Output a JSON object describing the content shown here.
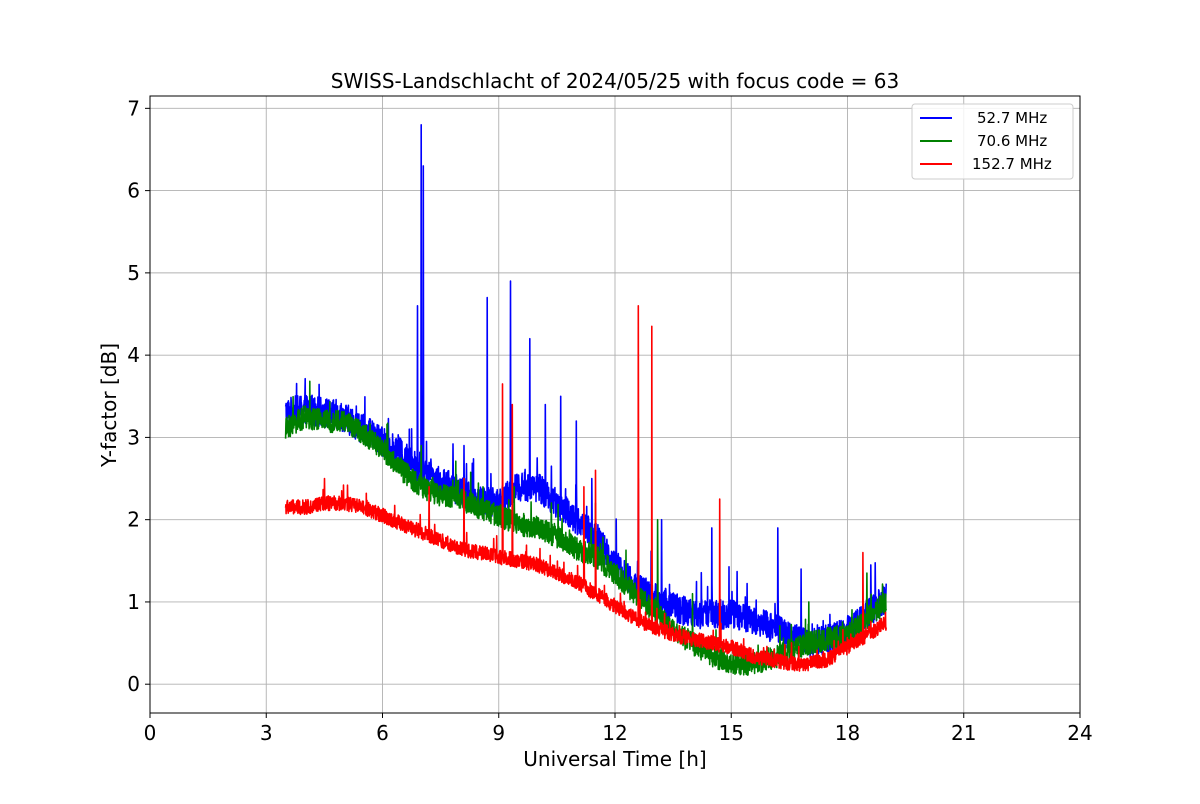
{
  "chart_data": {
    "type": "line",
    "title": "SWISS-Landschlacht of 2024/05/25 with focus code = 63",
    "xlabel": "Universal Time [h]",
    "ylabel": "Y-factor [dB]",
    "xlim": [
      0,
      24
    ],
    "ylim": [
      -0.35,
      7.15
    ],
    "xticks": [
      0,
      3,
      6,
      9,
      12,
      15,
      18,
      21,
      24
    ],
    "yticks": [
      0,
      1,
      2,
      3,
      4,
      5,
      6,
      7
    ],
    "grid": true,
    "legend_position": "top-right",
    "series": [
      {
        "name": "52.7 MHz",
        "color": "#0000ff",
        "noise": 0.18,
        "baseline": [
          [
            3.5,
            3.3
          ],
          [
            4.0,
            3.35
          ],
          [
            4.5,
            3.3
          ],
          [
            5.0,
            3.25
          ],
          [
            5.5,
            3.1
          ],
          [
            6.0,
            2.95
          ],
          [
            6.5,
            2.8
          ],
          [
            7.0,
            2.6
          ],
          [
            7.5,
            2.45
          ],
          [
            8.0,
            2.35
          ],
          [
            8.5,
            2.25
          ],
          [
            9.0,
            2.2
          ],
          [
            9.5,
            2.4
          ],
          [
            10.0,
            2.4
          ],
          [
            10.5,
            2.2
          ],
          [
            11.0,
            2.0
          ],
          [
            11.5,
            1.8
          ],
          [
            12.0,
            1.45
          ],
          [
            12.5,
            1.2
          ],
          [
            13.0,
            1.05
          ],
          [
            13.5,
            0.95
          ],
          [
            14.0,
            0.85
          ],
          [
            14.5,
            0.85
          ],
          [
            15.0,
            0.85
          ],
          [
            15.5,
            0.8
          ],
          [
            16.0,
            0.7
          ],
          [
            16.5,
            0.6
          ],
          [
            17.0,
            0.5
          ],
          [
            17.5,
            0.55
          ],
          [
            18.0,
            0.65
          ],
          [
            18.5,
            0.85
          ],
          [
            19.0,
            1.05
          ]
        ],
        "spikes": [
          [
            6.9,
            4.6
          ],
          [
            7.0,
            6.8
          ],
          [
            7.05,
            6.3
          ],
          [
            8.1,
            2.9
          ],
          [
            8.7,
            4.7
          ],
          [
            9.3,
            4.9
          ],
          [
            9.8,
            4.2
          ],
          [
            10.2,
            3.4
          ],
          [
            10.6,
            3.5
          ],
          [
            11.0,
            3.2
          ],
          [
            11.4,
            2.5
          ],
          [
            12.6,
            2.5
          ],
          [
            13.2,
            2.0
          ],
          [
            14.5,
            1.9
          ],
          [
            16.2,
            1.9
          ],
          [
            16.8,
            1.4
          ],
          [
            18.6,
            1.45
          ]
        ]
      },
      {
        "name": "70.6 MHz",
        "color": "#008000",
        "noise": 0.14,
        "baseline": [
          [
            3.5,
            3.1
          ],
          [
            4.0,
            3.25
          ],
          [
            4.5,
            3.2
          ],
          [
            5.0,
            3.2
          ],
          [
            5.5,
            3.05
          ],
          [
            6.0,
            2.85
          ],
          [
            6.5,
            2.6
          ],
          [
            7.0,
            2.4
          ],
          [
            7.5,
            2.3
          ],
          [
            8.0,
            2.25
          ],
          [
            8.5,
            2.15
          ],
          [
            9.0,
            2.05
          ],
          [
            9.5,
            1.95
          ],
          [
            10.0,
            1.9
          ],
          [
            10.5,
            1.8
          ],
          [
            11.0,
            1.65
          ],
          [
            11.5,
            1.55
          ],
          [
            12.0,
            1.35
          ],
          [
            12.5,
            1.1
          ],
          [
            13.0,
            0.9
          ],
          [
            13.5,
            0.65
          ],
          [
            14.0,
            0.5
          ],
          [
            14.5,
            0.35
          ],
          [
            15.0,
            0.25
          ],
          [
            15.5,
            0.25
          ],
          [
            16.0,
            0.3
          ],
          [
            16.5,
            0.4
          ],
          [
            17.0,
            0.5
          ],
          [
            17.5,
            0.55
          ],
          [
            18.0,
            0.6
          ],
          [
            18.5,
            0.8
          ],
          [
            19.0,
            1.0
          ]
        ],
        "spikes": [
          [
            7.0,
            2.9
          ],
          [
            9.4,
            2.4
          ],
          [
            11.5,
            2.2
          ],
          [
            13.1,
            2.0
          ],
          [
            14.0,
            1.1
          ],
          [
            17.0,
            1.0
          ],
          [
            18.5,
            1.35
          ]
        ]
      },
      {
        "name": "152.7 MHz",
        "color": "#ff0000",
        "noise": 0.09,
        "baseline": [
          [
            3.5,
            2.15
          ],
          [
            4.0,
            2.15
          ],
          [
            4.5,
            2.2
          ],
          [
            5.0,
            2.2
          ],
          [
            5.5,
            2.15
          ],
          [
            6.0,
            2.05
          ],
          [
            6.5,
            1.95
          ],
          [
            7.0,
            1.85
          ],
          [
            7.5,
            1.75
          ],
          [
            8.0,
            1.65
          ],
          [
            8.5,
            1.6
          ],
          [
            9.0,
            1.55
          ],
          [
            9.5,
            1.5
          ],
          [
            10.0,
            1.45
          ],
          [
            10.5,
            1.35
          ],
          [
            11.0,
            1.25
          ],
          [
            11.5,
            1.1
          ],
          [
            12.0,
            0.95
          ],
          [
            12.5,
            0.8
          ],
          [
            13.0,
            0.7
          ],
          [
            13.5,
            0.6
          ],
          [
            14.0,
            0.55
          ],
          [
            14.5,
            0.5
          ],
          [
            15.0,
            0.45
          ],
          [
            15.5,
            0.35
          ],
          [
            16.0,
            0.3
          ],
          [
            16.5,
            0.25
          ],
          [
            17.0,
            0.25
          ],
          [
            17.5,
            0.3
          ],
          [
            18.0,
            0.45
          ],
          [
            18.5,
            0.6
          ],
          [
            19.0,
            0.75
          ]
        ],
        "spikes": [
          [
            4.5,
            2.5
          ],
          [
            7.2,
            2.4
          ],
          [
            8.1,
            2.5
          ],
          [
            9.1,
            3.65
          ],
          [
            9.35,
            3.4
          ],
          [
            11.2,
            2.4
          ],
          [
            11.5,
            2.6
          ],
          [
            12.6,
            4.6
          ],
          [
            12.95,
            4.35
          ],
          [
            14.7,
            2.25
          ],
          [
            18.4,
            1.6
          ]
        ]
      }
    ]
  }
}
